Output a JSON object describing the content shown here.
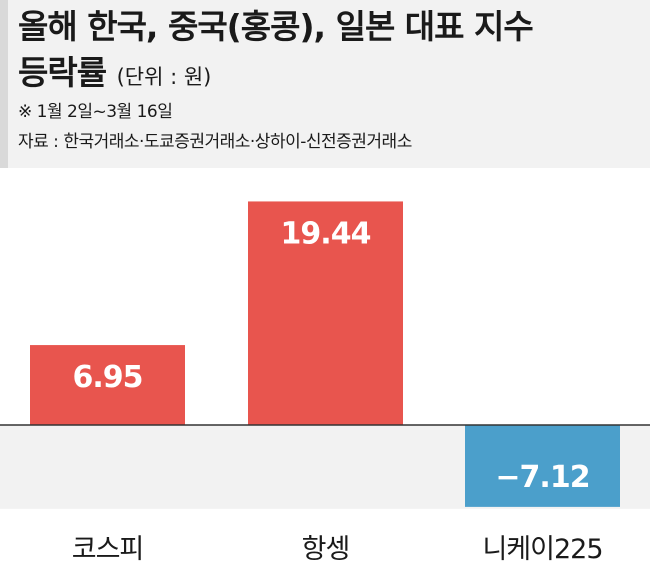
{
  "header": {
    "title_line1": "올해 한국, 중국(홍콩), 일본 대표 지수",
    "title_line2": "등락률",
    "unit": "(단위 : 원)",
    "note": "※ 1월 2일~3월 16일",
    "source": "자료 : 한국거래소·도쿄증권거래소·상하이-신전증권거래소"
  },
  "chart_data": {
    "type": "bar",
    "categories": [
      "코스피",
      "항셍",
      "니케이225"
    ],
    "values": [
      6.95,
      19.44,
      -7.12
    ],
    "labels": [
      "6.95",
      "19.44",
      "−7.12"
    ],
    "colors": {
      "positive": "#e8554e",
      "negative": "#4b9fcb",
      "negative_band": "#f2f2f2",
      "baseline": "#333333"
    },
    "ylim": [
      -7.12,
      19.44
    ]
  }
}
